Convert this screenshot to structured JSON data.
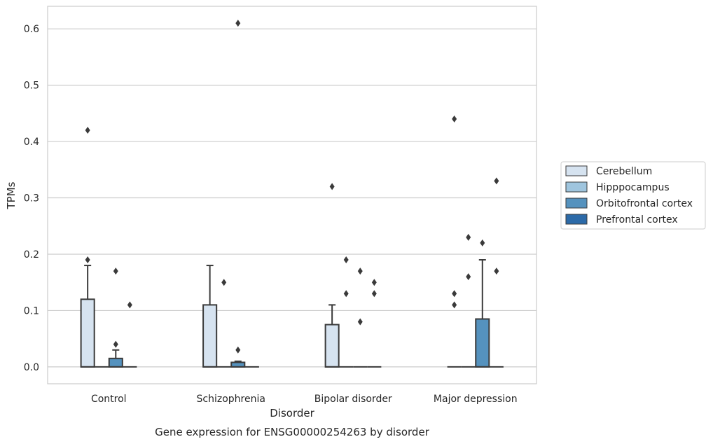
{
  "chart_data": {
    "type": "box",
    "title": "",
    "caption": "Gene expression for ENSG00000254263 by disorder",
    "xlabel": "Disorder",
    "ylabel": "TPMs",
    "ylim": [
      -0.03,
      0.64
    ],
    "yticks": [
      0.0,
      0.1,
      0.2,
      0.3,
      0.4,
      0.5,
      0.6
    ],
    "ytick_labels": [
      "0.0",
      "0.1",
      "0.2",
      "0.3",
      "0.4",
      "0.5",
      "0.6"
    ],
    "grid": "horizontal",
    "legend_position": "right",
    "categories": [
      "Control",
      "Schizophrenia",
      "Bipolar disorder",
      "Major depression"
    ],
    "series": [
      {
        "name": "Cerebellum",
        "color": "#d6e3f0",
        "boxes": [
          {
            "q1": 0.0,
            "median": 0.0,
            "q3": 0.12,
            "whisker_low": 0.0,
            "whisker_high": 0.18,
            "outliers": [
              0.19,
              0.42
            ]
          },
          {
            "q1": 0.0,
            "median": 0.0,
            "q3": 0.11,
            "whisker_low": 0.0,
            "whisker_high": 0.18,
            "outliers": []
          },
          {
            "q1": 0.0,
            "median": 0.0,
            "q3": 0.075,
            "whisker_low": 0.0,
            "whisker_high": 0.11,
            "outliers": [
              0.32
            ]
          },
          {
            "q1": 0.0,
            "median": 0.0,
            "q3": 0.0,
            "whisker_low": 0.0,
            "whisker_high": 0.0,
            "outliers": [
              0.11,
              0.13,
              0.44
            ]
          }
        ]
      },
      {
        "name": "Hipppocampus",
        "color": "#9fc5de",
        "boxes": [
          {
            "q1": 0.0,
            "median": 0.0,
            "q3": 0.0,
            "whisker_low": 0.0,
            "whisker_high": 0.0,
            "outliers": []
          },
          {
            "q1": 0.0,
            "median": 0.0,
            "q3": 0.0,
            "whisker_low": 0.0,
            "whisker_high": 0.0,
            "outliers": [
              0.15
            ]
          },
          {
            "q1": 0.0,
            "median": 0.0,
            "q3": 0.0,
            "whisker_low": 0.0,
            "whisker_high": 0.0,
            "outliers": [
              0.13,
              0.19
            ]
          },
          {
            "q1": 0.0,
            "median": 0.0,
            "q3": 0.0,
            "whisker_low": 0.0,
            "whisker_high": 0.0,
            "outliers": [
              0.16,
              0.23
            ]
          }
        ]
      },
      {
        "name": "Orbitofrontal cortex",
        "color": "#5592be",
        "boxes": [
          {
            "q1": 0.0,
            "median": 0.0,
            "q3": 0.015,
            "whisker_low": 0.0,
            "whisker_high": 0.03,
            "outliers": [
              0.04,
              0.17
            ]
          },
          {
            "q1": 0.0,
            "median": 0.0,
            "q3": 0.008,
            "whisker_low": 0.0,
            "whisker_high": 0.01,
            "outliers": [
              0.03,
              0.61
            ]
          },
          {
            "q1": 0.0,
            "median": 0.0,
            "q3": 0.0,
            "whisker_low": 0.0,
            "whisker_high": 0.0,
            "outliers": [
              0.08,
              0.17
            ]
          },
          {
            "q1": 0.0,
            "median": 0.0,
            "q3": 0.085,
            "whisker_low": 0.0,
            "whisker_high": 0.19,
            "outliers": [
              0.22
            ]
          }
        ]
      },
      {
        "name": "Prefrontal cortex",
        "color": "#2c6aa8",
        "boxes": [
          {
            "q1": 0.0,
            "median": 0.0,
            "q3": 0.0,
            "whisker_low": 0.0,
            "whisker_high": 0.0,
            "outliers": [
              0.11
            ]
          },
          {
            "q1": 0.0,
            "median": 0.0,
            "q3": 0.0,
            "whisker_low": 0.0,
            "whisker_high": 0.0,
            "outliers": []
          },
          {
            "q1": 0.0,
            "median": 0.0,
            "q3": 0.0,
            "whisker_low": 0.0,
            "whisker_high": 0.0,
            "outliers": [
              0.13,
              0.15
            ]
          },
          {
            "q1": 0.0,
            "median": 0.0,
            "q3": 0.0,
            "whisker_low": 0.0,
            "whisker_high": 0.0,
            "outliers": [
              0.17,
              0.33
            ]
          }
        ]
      }
    ]
  }
}
